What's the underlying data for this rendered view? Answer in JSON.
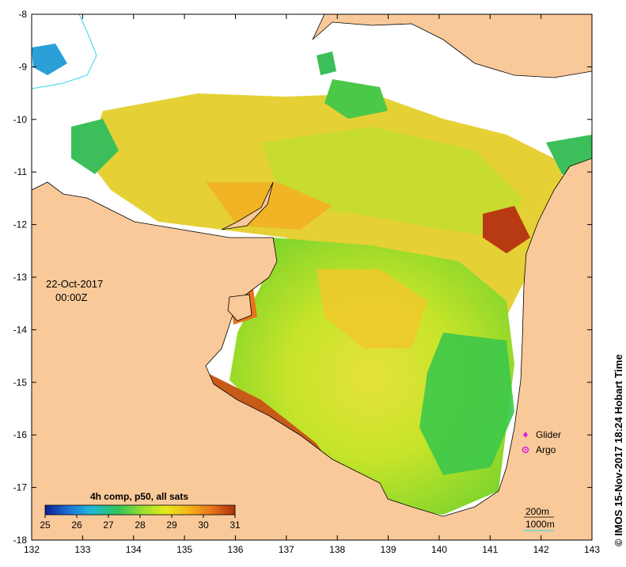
{
  "map": {
    "date": "22-Oct-2017",
    "time": "00:00Z",
    "credit": "© IMOS 15-Nov-2017 18:24 Hobart Time",
    "x_ticks": [
      "132",
      "133",
      "134",
      "135",
      "136",
      "137",
      "138",
      "139",
      "140",
      "141",
      "142",
      "143"
    ],
    "y_ticks": [
      "-8",
      "-9",
      "-10",
      "-11",
      "-12",
      "-13",
      "-14",
      "-15",
      "-16",
      "-17",
      "-18"
    ],
    "colorbar": {
      "title": "4h comp, p50, all sats",
      "ticks": [
        "25",
        "26",
        "27",
        "28",
        "29",
        "30",
        "31"
      ],
      "colors": [
        "#0a1f8f",
        "#1f6fd6",
        "#22b8d8",
        "#2ec45a",
        "#9fe02e",
        "#e8e81a",
        "#f6b21a",
        "#e8731a",
        "#a8310e"
      ]
    },
    "legend": [
      {
        "label": "Glider",
        "color": "#e020e0"
      },
      {
        "label": "Argo",
        "color": "#e020e0"
      }
    ],
    "isobaths": [
      {
        "label": "200m"
      },
      {
        "label": "1000m",
        "color": "#30d8e8"
      }
    ],
    "colors": {
      "land": "#f9c99a",
      "ocean_nodata": "#ffffff",
      "sst_mid": "#b8e62c",
      "sst_warm": "#f0b424"
    }
  }
}
